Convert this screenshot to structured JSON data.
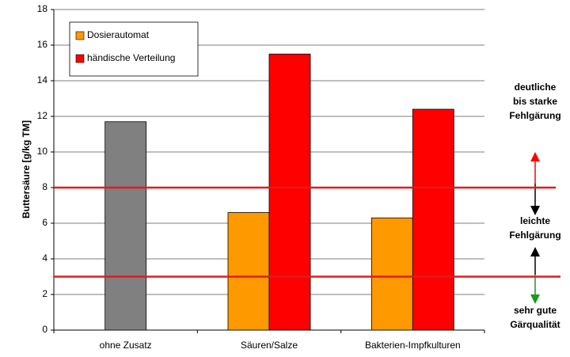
{
  "chart_data": {
    "type": "bar",
    "y_label": "Buttersäure [g/kg TM]",
    "categories": [
      "ohne Zusatz",
      "Säuren/Salze",
      "Bakterien-Impfkulturen"
    ],
    "series": [
      {
        "color": "#808080",
        "values": [
          11.7,
          null,
          null
        ]
      },
      {
        "name": "Dosierautomat",
        "color": "#ff9900",
        "values": [
          null,
          6.6,
          6.3
        ]
      },
      {
        "name": "händische Verteilung",
        "color": "#ff0000",
        "values": [
          null,
          15.5,
          12.4
        ]
      }
    ],
    "ylim": [
      0,
      18
    ],
    "yticks": [
      0,
      2,
      4,
      6,
      8,
      10,
      12,
      14,
      16,
      18
    ],
    "grid": true,
    "legend": "upper left",
    "reference_lines": [
      {
        "value": 8,
        "color": "#e31a1c"
      },
      {
        "value": 3,
        "color": "#e31a1c"
      }
    ],
    "annotations": [
      [
        "deutliche",
        "bis starke",
        "Fehlgärung"
      ],
      [
        "leichte",
        "Fehlgärung"
      ],
      [
        "sehr gute",
        "Gärqualität"
      ]
    ]
  }
}
